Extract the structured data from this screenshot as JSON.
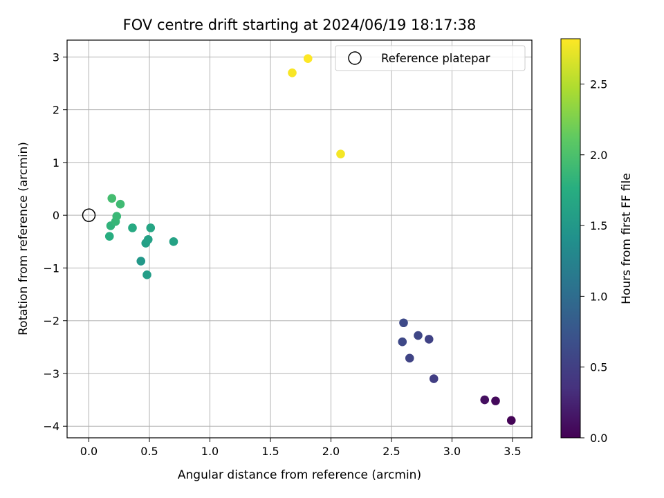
{
  "chart_data": {
    "type": "scatter",
    "title": "FOV centre drift starting at 2024/06/19 18:17:38",
    "xlabel": "Angular distance from reference (arcmin)",
    "ylabel": "Rotation from reference (arcmin)",
    "xlim": [
      -0.18,
      3.66
    ],
    "ylim": [
      -4.22,
      3.32
    ],
    "xticks": [
      0.0,
      0.5,
      1.0,
      1.5,
      2.0,
      2.5,
      3.0,
      3.5
    ],
    "xtick_labels": [
      "0.0",
      "0.5",
      "1.0",
      "1.5",
      "2.0",
      "2.5",
      "3.0",
      "3.5"
    ],
    "yticks": [
      -4,
      -3,
      -2,
      -1,
      0,
      1,
      2,
      3
    ],
    "ytick_labels": [
      "−4",
      "−3",
      "−2",
      "−1",
      "0",
      "1",
      "2",
      "3"
    ],
    "grid": true,
    "legend": {
      "placement": "top-right",
      "entries": [
        "Reference platepar"
      ]
    },
    "reference_point": {
      "x": 0.0,
      "y": 0.0
    },
    "colorbar": {
      "label": "Hours from first FF file",
      "colormap": "viridis",
      "range": [
        0.0,
        2.82
      ],
      "ticks": [
        0.0,
        0.5,
        1.0,
        1.5,
        2.0,
        2.5
      ],
      "tick_labels": [
        "0.0",
        "0.5",
        "1.0",
        "1.5",
        "2.0",
        "2.5"
      ]
    },
    "points": [
      {
        "x": 3.49,
        "y": -3.89,
        "c": 0.02
      },
      {
        "x": 3.36,
        "y": -3.52,
        "c": 0.06
      },
      {
        "x": 3.27,
        "y": -3.5,
        "c": 0.1
      },
      {
        "x": 2.85,
        "y": -3.1,
        "c": 0.48
      },
      {
        "x": 2.65,
        "y": -2.71,
        "c": 0.55
      },
      {
        "x": 2.59,
        "y": -2.4,
        "c": 0.6
      },
      {
        "x": 2.72,
        "y": -2.28,
        "c": 0.58
      },
      {
        "x": 2.81,
        "y": -2.35,
        "c": 0.53
      },
      {
        "x": 2.6,
        "y": -2.04,
        "c": 0.62
      },
      {
        "x": 0.48,
        "y": -1.13,
        "c": 1.55
      },
      {
        "x": 0.43,
        "y": -0.87,
        "c": 1.5
      },
      {
        "x": 0.47,
        "y": -0.53,
        "c": 1.58
      },
      {
        "x": 0.49,
        "y": -0.46,
        "c": 1.6
      },
      {
        "x": 0.51,
        "y": -0.24,
        "c": 1.65
      },
      {
        "x": 0.7,
        "y": -0.5,
        "c": 1.62
      },
      {
        "x": 0.36,
        "y": -0.24,
        "c": 1.7
      },
      {
        "x": 0.17,
        "y": -0.4,
        "c": 1.75
      },
      {
        "x": 0.18,
        "y": -0.2,
        "c": 1.82
      },
      {
        "x": 0.22,
        "y": -0.12,
        "c": 1.86
      },
      {
        "x": 0.23,
        "y": -0.02,
        "c": 1.88
      },
      {
        "x": 0.19,
        "y": 0.32,
        "c": 1.95
      },
      {
        "x": 0.26,
        "y": 0.21,
        "c": 1.92
      },
      {
        "x": 2.08,
        "y": 1.16,
        "c": 2.78
      },
      {
        "x": 1.68,
        "y": 2.7,
        "c": 2.8
      },
      {
        "x": 1.81,
        "y": 2.97,
        "c": 2.82
      }
    ]
  }
}
